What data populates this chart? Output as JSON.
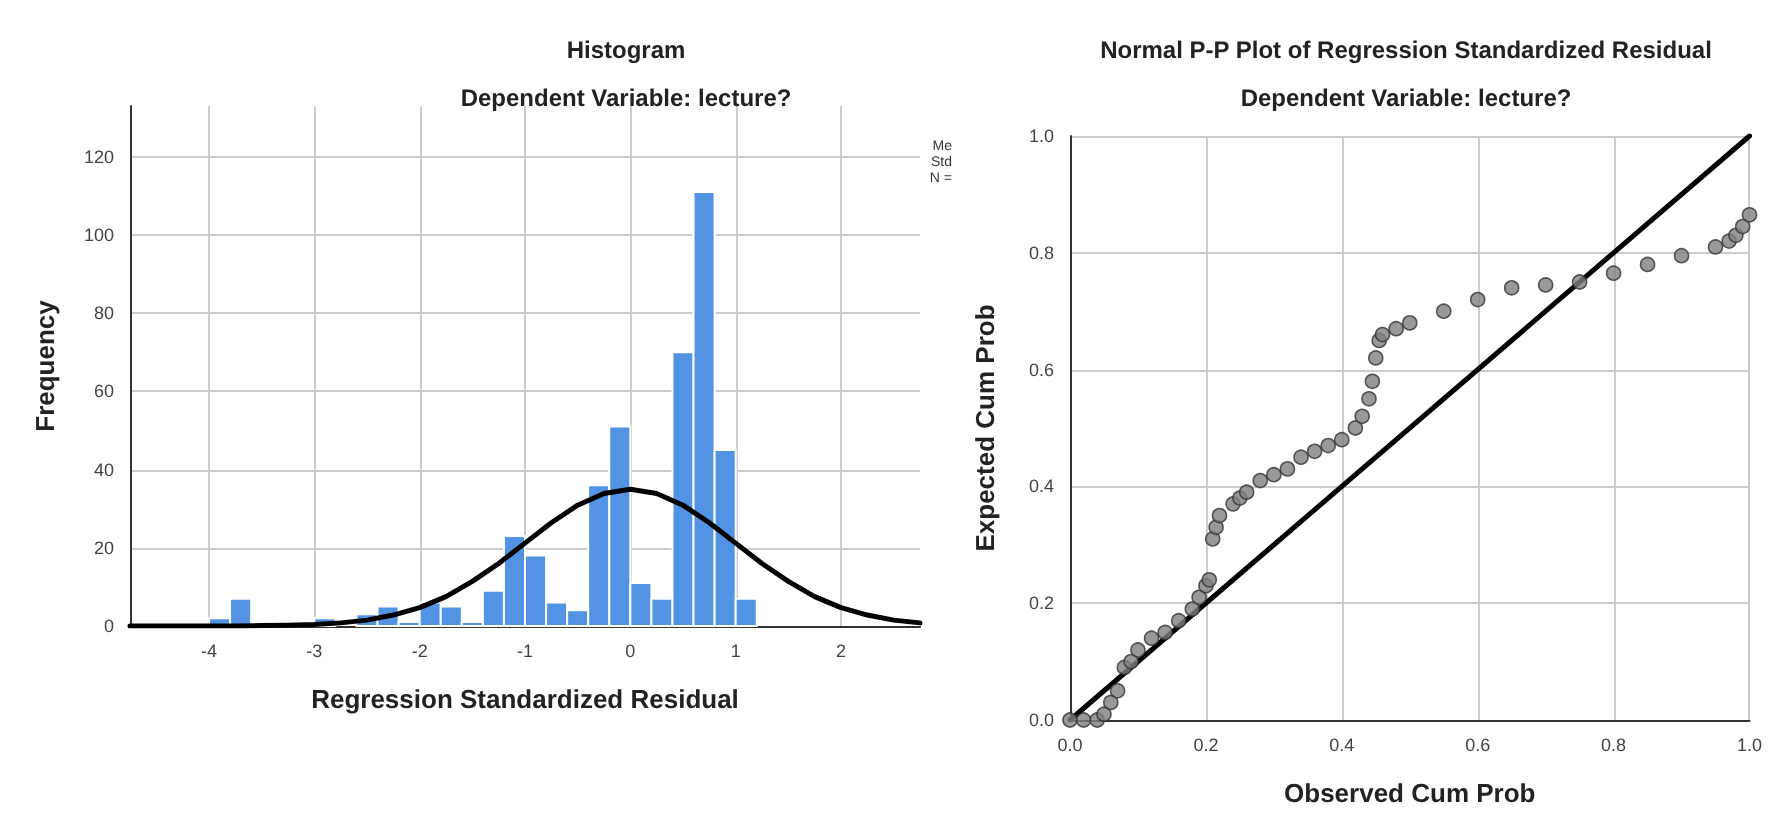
{
  "chart_data": [
    {
      "type": "histogram",
      "title": "Histogram",
      "subtitle": "Dependent Variable: lecture?",
      "xlabel": "Regression Standardized Residual",
      "ylabel": "Frequency",
      "color": "#5393e3",
      "bins": [
        -4.0,
        -3.8,
        -3.6,
        -3.4,
        -3.2,
        -3.0,
        -2.8,
        -2.6,
        -2.4,
        -2.2,
        -2.0,
        -1.8,
        -1.6,
        -1.4,
        -1.2,
        -1.0,
        -0.8,
        -0.6,
        -0.4,
        -0.2,
        0.0,
        0.2,
        0.4,
        0.6,
        0.8,
        1.0,
        1.2
      ],
      "values": [
        2,
        7,
        0,
        0,
        0,
        2,
        0,
        3,
        5,
        1,
        6,
        5,
        1,
        9,
        23,
        18,
        6,
        4,
        36,
        51,
        11,
        7,
        70,
        111,
        45,
        7
      ],
      "series": [
        {
          "type": "line",
          "color": "#000000",
          "marker": "none",
          "x": [
            -4.75,
            -4.5,
            -4.25,
            -4.0,
            -3.75,
            -3.5,
            -3.25,
            -3.0,
            -2.75,
            -2.5,
            -2.25,
            -2.0,
            -1.75,
            -1.5,
            -1.25,
            -1.0,
            -0.75,
            -0.5,
            -0.25,
            0.0,
            0.25,
            0.5,
            0.75,
            1.0,
            1.25,
            1.5,
            1.75,
            2.0,
            2.25,
            2.5,
            2.75
          ],
          "values": [
            0,
            0,
            0,
            0,
            0,
            0.1,
            0.2,
            0.4,
            0.8,
            1.5,
            2.8,
            4.7,
            7.5,
            11.4,
            16,
            21.2,
            26.4,
            30.9,
            33.9,
            35,
            33.9,
            30.9,
            26.4,
            21.2,
            16,
            11.4,
            7.5,
            4.7,
            2.8,
            1.5,
            0.8
          ]
        }
      ],
      "xlim": [
        -4.75,
        2.75
      ],
      "xticks": [
        -4,
        -3,
        -2,
        -1,
        0,
        1,
        2
      ],
      "ylim": [
        0,
        133
      ],
      "yticks": [
        0,
        20,
        40,
        60,
        80,
        100,
        120
      ],
      "grid": true,
      "annotations": [
        "Me",
        "Std",
        "N ="
      ]
    },
    {
      "type": "scatter",
      "title": "Normal P-P Plot of Regression Standardized Residual",
      "subtitle": "Dependent Variable: lecture?",
      "xlabel": "Observed Cum Prob",
      "ylabel": "Expected Cum Prob",
      "series": [
        {
          "type": "scatter",
          "color": "#808080",
          "marker": "circle",
          "x": [
            0.0,
            0.02,
            0.04,
            0.05,
            0.06,
            0.07,
            0.08,
            0.09,
            0.1,
            0.12,
            0.14,
            0.16,
            0.18,
            0.19,
            0.2,
            0.205,
            0.21,
            0.215,
            0.22,
            0.24,
            0.25,
            0.26,
            0.28,
            0.3,
            0.32,
            0.34,
            0.36,
            0.38,
            0.4,
            0.42,
            0.43,
            0.44,
            0.445,
            0.45,
            0.455,
            0.46,
            0.48,
            0.5,
            0.55,
            0.6,
            0.65,
            0.7,
            0.75,
            0.8,
            0.85,
            0.9,
            0.95,
            0.97,
            0.98,
            0.99,
            1.0
          ],
          "values": [
            0.0,
            0.0,
            0.0,
            0.01,
            0.03,
            0.05,
            0.09,
            0.1,
            0.12,
            0.14,
            0.15,
            0.17,
            0.19,
            0.21,
            0.23,
            0.24,
            0.31,
            0.33,
            0.35,
            0.37,
            0.38,
            0.39,
            0.41,
            0.42,
            0.43,
            0.45,
            0.46,
            0.47,
            0.48,
            0.5,
            0.52,
            0.55,
            0.58,
            0.62,
            0.65,
            0.66,
            0.67,
            0.68,
            0.7,
            0.72,
            0.74,
            0.745,
            0.75,
            0.765,
            0.78,
            0.795,
            0.81,
            0.82,
            0.83,
            0.845,
            0.865
          ]
        },
        {
          "type": "line",
          "color": "#000000",
          "marker": "none",
          "x": [
            0,
            1
          ],
          "values": [
            0,
            1
          ]
        }
      ],
      "xlim": [
        0,
        1
      ],
      "xticks": [
        {
          "value": 0,
          "label": "0.0"
        },
        0.2,
        0.4,
        0.6,
        0.8,
        {
          "value": 1,
          "label": "1.0"
        }
      ],
      "ylim": [
        0,
        1
      ],
      "yticks": [
        {
          "value": 0,
          "label": "0.0"
        },
        0.2,
        0.4,
        0.6,
        0.8,
        {
          "value": 1,
          "label": "1.0"
        }
      ],
      "grid": true
    }
  ]
}
